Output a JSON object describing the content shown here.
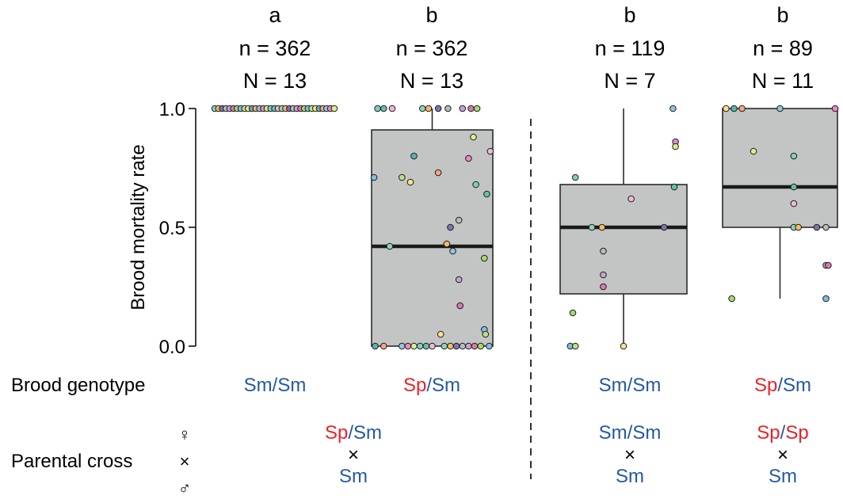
{
  "colors": {
    "sm": "#2459A3",
    "sp": "#E8232A",
    "box_fill": "#C3C5C4",
    "box_stroke": "#2b2b2b",
    "median": "#1a1a1a"
  },
  "chart_data": {
    "type": "box",
    "ylabel": "Brood mortality rate",
    "ylim": [
      0,
      1
    ],
    "yticks": [
      "0.0",
      "0.5",
      "1.0"
    ],
    "row_labels": {
      "genotype": "Brood genotype",
      "cross": "Parental cross"
    },
    "cross_symbols": [
      "♀",
      "×",
      "♂"
    ],
    "divider": "dashed, between group 2 and group 3",
    "groups": [
      {
        "letter": "a",
        "n": "n = 362",
        "N": "N = 13",
        "genotype": [
          "Sm",
          "/",
          "Sm"
        ],
        "genotype_colors": [
          "sm",
          "",
          "sm"
        ],
        "cross": {
          "female": [
            "Sp",
            "/",
            "Sm"
          ],
          "female_colors": [
            "sp",
            "",
            "sm"
          ],
          "x": "×",
          "male": "Sm"
        },
        "box": null,
        "points": [
          [
            0.02,
            1
          ],
          [
            0.05,
            1
          ],
          [
            0.08,
            1
          ],
          [
            0.11,
            1
          ],
          [
            0.14,
            1
          ],
          [
            0.17,
            1
          ],
          [
            0.2,
            1
          ],
          [
            0.23,
            1
          ],
          [
            0.26,
            1
          ],
          [
            0.29,
            1
          ],
          [
            0.32,
            1
          ],
          [
            0.35,
            1
          ],
          [
            0.38,
            1
          ],
          [
            0.41,
            1
          ],
          [
            0.44,
            1
          ],
          [
            0.47,
            1
          ],
          [
            0.5,
            1
          ],
          [
            0.53,
            1
          ],
          [
            0.56,
            1
          ],
          [
            0.59,
            1
          ],
          [
            0.62,
            1
          ],
          [
            0.65,
            1
          ],
          [
            0.68,
            1
          ],
          [
            0.71,
            1
          ],
          [
            0.74,
            1
          ],
          [
            0.77,
            1
          ],
          [
            0.8,
            1
          ],
          [
            0.83,
            1
          ],
          [
            0.86,
            1
          ],
          [
            0.89,
            1
          ],
          [
            0.92,
            1
          ],
          [
            0.95,
            1
          ],
          [
            0.98,
            1
          ]
        ]
      },
      {
        "letter": "b",
        "n": "n = 362",
        "N": "N = 13",
        "genotype": [
          "Sp",
          "/",
          "Sm"
        ],
        "genotype_colors": [
          "sp",
          "",
          "sm"
        ],
        "cross": null,
        "box": {
          "min": 0,
          "q1": 0,
          "median": 0.42,
          "q3": 0.91,
          "max": 1.0
        },
        "points": [
          [
            0.05,
            1
          ],
          [
            0.1,
            1
          ],
          [
            0.17,
            1
          ],
          [
            0.42,
            1
          ],
          [
            0.47,
            1
          ],
          [
            0.55,
            1
          ],
          [
            0.63,
            1
          ],
          [
            0.75,
            1
          ],
          [
            0.82,
            1
          ],
          [
            0.87,
            1
          ],
          [
            0.02,
            0.71
          ],
          [
            0.25,
            0.71
          ],
          [
            0.32,
            0.69
          ],
          [
            0.35,
            0.8
          ],
          [
            0.55,
            0.73
          ],
          [
            0.67,
            0.4
          ],
          [
            0.8,
            0.79
          ],
          [
            0.84,
            0.88
          ],
          [
            0.86,
            0.68
          ],
          [
            0.95,
            0.64
          ],
          [
            0.98,
            0.82
          ],
          [
            0.15,
            0.42
          ],
          [
            0.62,
            0.43
          ],
          [
            0.65,
            0.5
          ],
          [
            0.72,
            0.53
          ],
          [
            0.72,
            0.28
          ],
          [
            0.73,
            0.17
          ],
          [
            0.93,
            0.37
          ],
          [
            0.93,
            0.07
          ],
          [
            0.94,
            0.05
          ],
          [
            0.57,
            0.05
          ],
          [
            0.03,
            0
          ],
          [
            0.1,
            0
          ],
          [
            0.25,
            0
          ],
          [
            0.3,
            0
          ],
          [
            0.35,
            0
          ],
          [
            0.4,
            0
          ],
          [
            0.45,
            0
          ],
          [
            0.5,
            0
          ],
          [
            0.6,
            0
          ],
          [
            0.65,
            0
          ],
          [
            0.7,
            0
          ],
          [
            0.75,
            0
          ],
          [
            0.8,
            0
          ],
          [
            0.85,
            0
          ],
          [
            0.9,
            0
          ],
          [
            0.97,
            0
          ]
        ]
      },
      {
        "letter": "b",
        "n": "n = 119",
        "N": "N = 7",
        "genotype": [
          "Sm",
          "/",
          "Sm"
        ],
        "genotype_colors": [
          "sm",
          "",
          "sm"
        ],
        "cross": {
          "female": [
            "Sm",
            "/",
            "Sm"
          ],
          "female_colors": [
            "sm",
            "",
            "sm"
          ],
          "x": "×",
          "male": "Sm"
        },
        "box": {
          "min": 0,
          "q1": 0.22,
          "median": 0.5,
          "q3": 0.68,
          "max": 1.0
        },
        "points": [
          [
            0.89,
            1
          ],
          [
            0.91,
            0.86
          ],
          [
            0.91,
            0.84
          ],
          [
            0.12,
            0.71
          ],
          [
            0.9,
            0.67
          ],
          [
            0.56,
            0.62
          ],
          [
            0.25,
            0.5
          ],
          [
            0.33,
            0.5
          ],
          [
            0.82,
            0.5
          ],
          [
            0.34,
            0.4
          ],
          [
            0.34,
            0.3
          ],
          [
            0.34,
            0.25
          ],
          [
            0.1,
            0.14
          ],
          [
            0.08,
            0
          ],
          [
            0.12,
            0
          ],
          [
            0.5,
            0
          ]
        ]
      },
      {
        "letter": "b",
        "n": "n = 89",
        "N": "N = 11",
        "genotype": [
          "Sp",
          "/",
          "Sm"
        ],
        "genotype_colors": [
          "sp",
          "",
          "sm"
        ],
        "cross": {
          "female": [
            "Sp",
            "/",
            "Sp"
          ],
          "female_colors": [
            "sp",
            "",
            "sp"
          ],
          "x": "×",
          "male": "Sm"
        },
        "box": {
          "min": 0.2,
          "q1": 0.5,
          "median": 0.67,
          "q3": 1.0,
          "max": 1.0
        },
        "points": [
          [
            0.03,
            1
          ],
          [
            0.1,
            1
          ],
          [
            0.17,
            1
          ],
          [
            0.5,
            1
          ],
          [
            0.98,
            1
          ],
          [
            0.27,
            0.82
          ],
          [
            0.62,
            0.8
          ],
          [
            0.62,
            0.67
          ],
          [
            0.62,
            0.6
          ],
          [
            0.62,
            0.5
          ],
          [
            0.66,
            0.5
          ],
          [
            0.82,
            0.5
          ],
          [
            0.9,
            0.5
          ],
          [
            0.9,
            0.34
          ],
          [
            0.92,
            0.34
          ],
          [
            0.08,
            0.2
          ],
          [
            0.9,
            0.2
          ]
        ]
      }
    ]
  }
}
